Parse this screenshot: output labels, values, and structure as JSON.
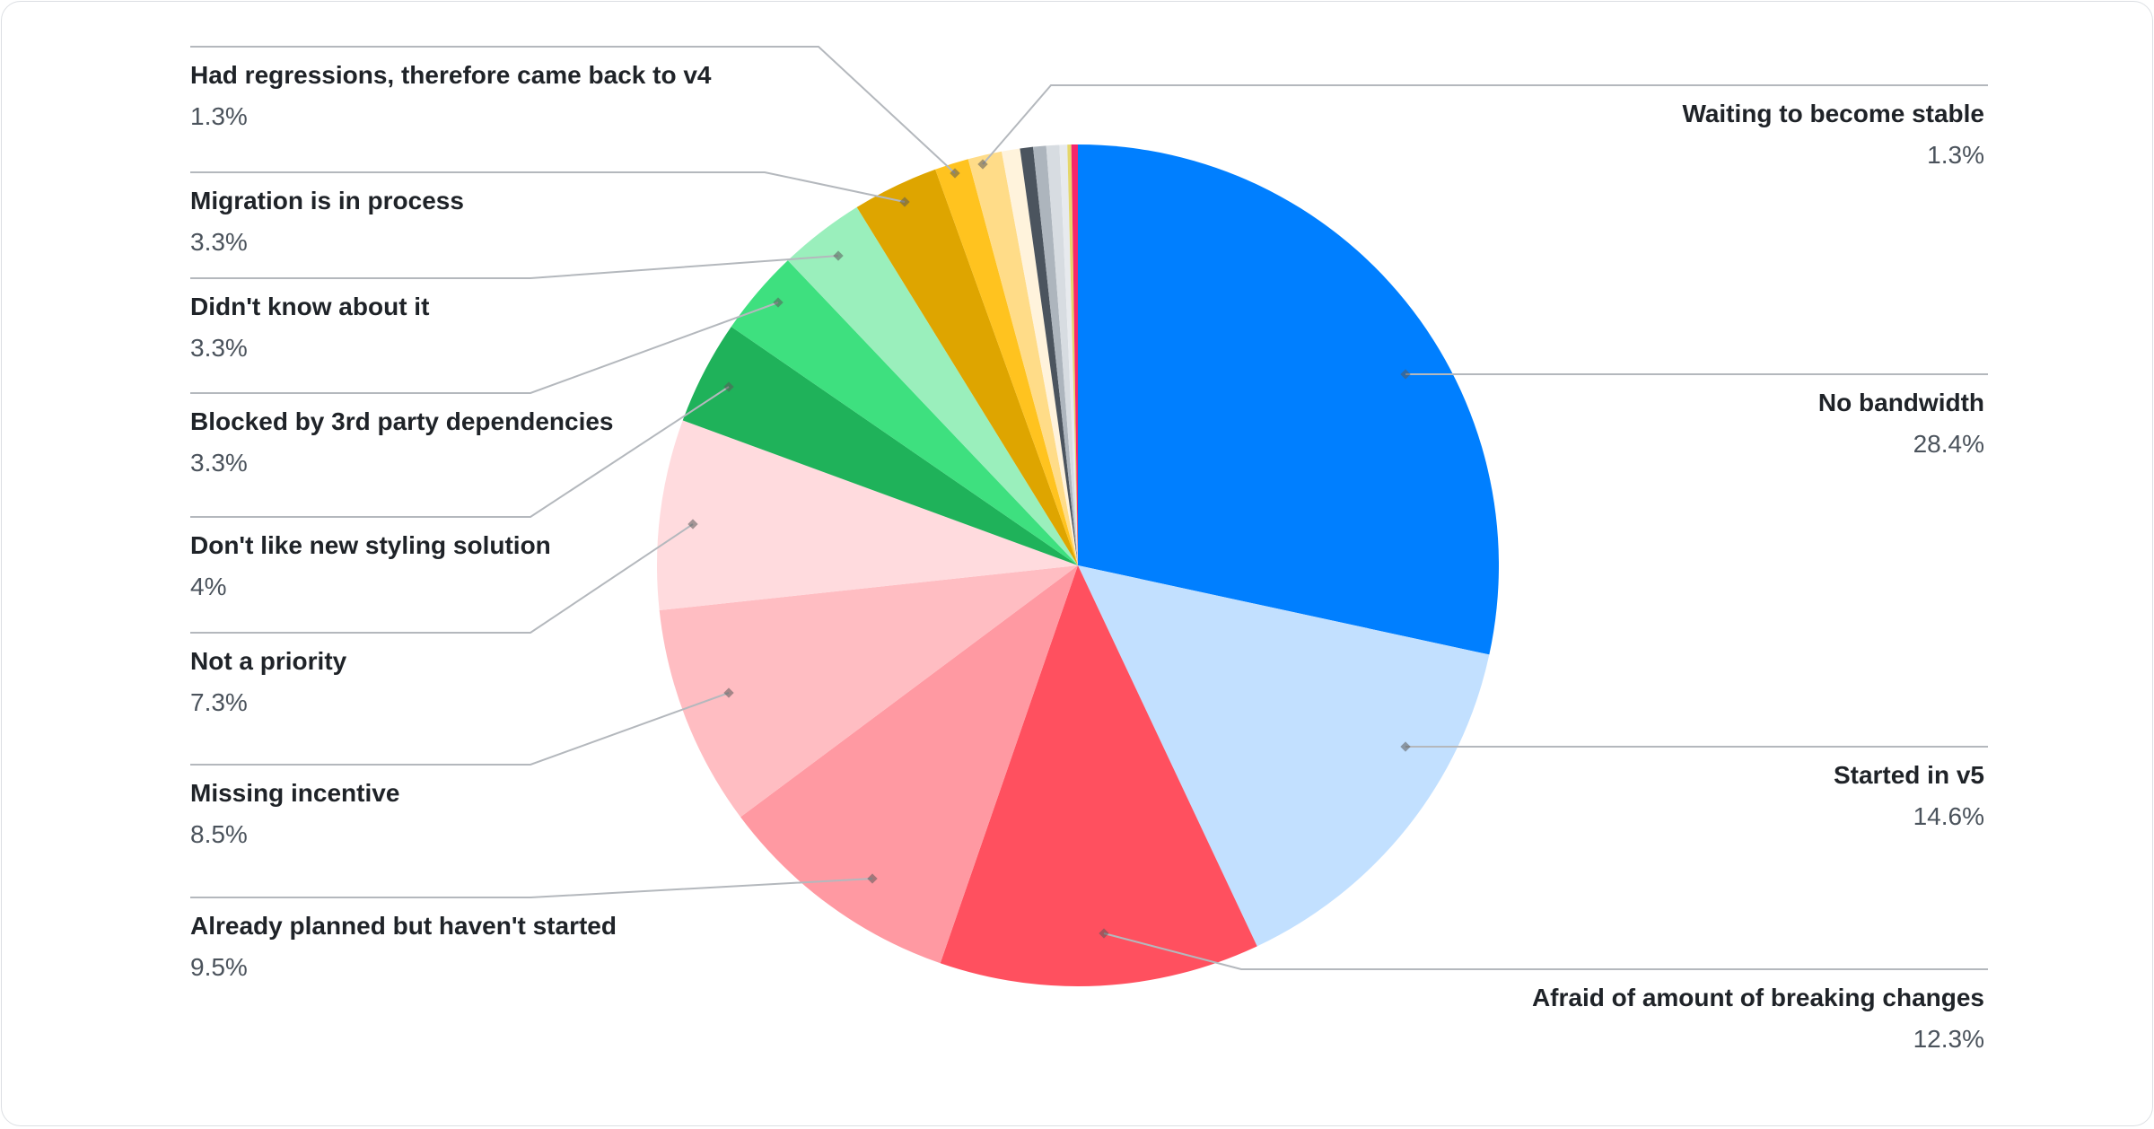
{
  "chart_data": {
    "type": "pie",
    "start_angle": "12 o'clock",
    "direction": "clockwise",
    "legend": "leader-line labels left and right",
    "slices": [
      {
        "name": "No bandwidth",
        "value": 28.4,
        "label": "28.4%",
        "color": "#007fff"
      },
      {
        "name": "Started in v5",
        "value": 14.6,
        "label": "14.6%",
        "color": "#c2e0ff"
      },
      {
        "name": "Afraid of amount of breaking changes",
        "value": 12.3,
        "label": "12.3%",
        "color": "#ff505f"
      },
      {
        "name": "Already planned but haven't started",
        "value": 9.5,
        "label": "9.5%",
        "color": "#ff99a2"
      },
      {
        "name": "Missing incentive",
        "value": 8.5,
        "label": "8.5%",
        "color": "#ffbdc2"
      },
      {
        "name": "Not a priority",
        "value": 7.3,
        "label": "7.3%",
        "color": "#ffdbde"
      },
      {
        "name": "Don't like new styling solution",
        "value": 4,
        "label": "4%",
        "color": "#1fb25a"
      },
      {
        "name": "Blocked by 3rd party dependencies",
        "value": 3.3,
        "label": "3.3%",
        "color": "#3ee07f"
      },
      {
        "name": "Didn't know about it",
        "value": 3.3,
        "label": "3.3%",
        "color": "#9aefbc"
      },
      {
        "name": "Migration is in process",
        "value": 3.3,
        "label": "3.3%",
        "color": "#dea500"
      },
      {
        "name": "Had regressions, therefore came back to v4",
        "value": 1.3,
        "label": "1.3%",
        "color": "#ffc31f"
      },
      {
        "name": "Waiting to become stable",
        "value": 1.3,
        "label": "1.3%",
        "color": "#ffdc88"
      },
      {
        "name": "",
        "value": 0.7,
        "label": "",
        "color": "#fff3dc"
      },
      {
        "name": "",
        "value": 0.5,
        "label": "",
        "color": "#4b545e"
      },
      {
        "name": "",
        "value": 0.5,
        "label": "",
        "color": "#adb5bd"
      },
      {
        "name": "",
        "value": 0.5,
        "label": "",
        "color": "#d7dce1"
      },
      {
        "name": "",
        "value": 0.3,
        "label": "",
        "color": "#e7eaee"
      },
      {
        "name": "",
        "value": 0.15,
        "label": "",
        "color": "#e5d66b"
      },
      {
        "name": "",
        "value": 0.25,
        "label": "",
        "color": "#f5266b"
      }
    ]
  }
}
